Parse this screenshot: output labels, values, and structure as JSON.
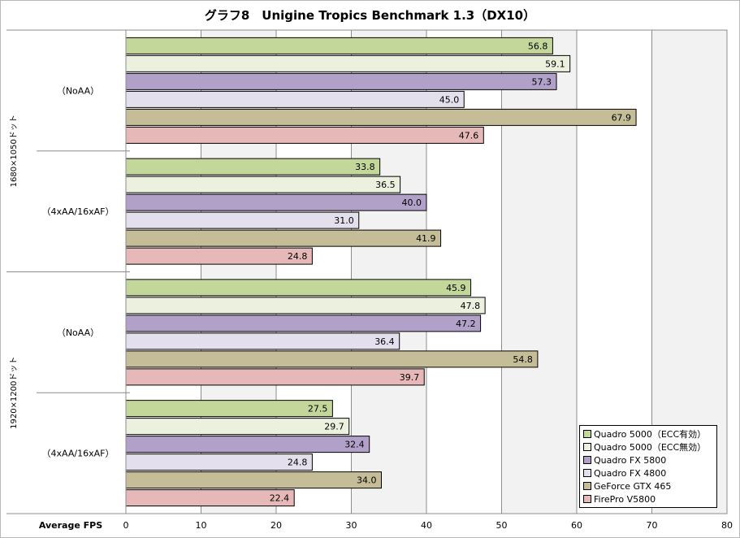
{
  "chart_data": {
    "type": "bar",
    "orientation": "horizontal",
    "title": "グラフ8　Unigine Tropics Benchmark 1.3（DX10）",
    "xlabel": "Average FPS",
    "xlim": [
      0,
      80
    ],
    "xticks": [
      0,
      10,
      20,
      30,
      40,
      50,
      60,
      70,
      80
    ],
    "grid": true,
    "legend_position": "bottom-right",
    "groups": [
      {
        "label": "1680×1050ドット",
        "categories": [
          "（NoAA）",
          "（4xAA/16xAF）"
        ]
      },
      {
        "label": "1920×1200ドット",
        "categories": [
          "（NoAA）",
          "（4xAA/16xAF）"
        ]
      }
    ],
    "series": [
      {
        "name": "Quadro 5000（ECC有効）",
        "color": "#c4d79b",
        "values": [
          56.8,
          33.8,
          45.9,
          27.5
        ]
      },
      {
        "name": "Quadro 5000（ECC無効）",
        "color": "#ebf1de",
        "values": [
          59.1,
          36.5,
          47.8,
          29.7
        ]
      },
      {
        "name": "Quadro FX 5800",
        "color": "#b1a0c7",
        "values": [
          57.3,
          40.0,
          47.2,
          32.4
        ]
      },
      {
        "name": "Quadro FX 4800",
        "color": "#e4dfec",
        "values": [
          45.0,
          31.0,
          36.4,
          24.8
        ]
      },
      {
        "name": "GeForce GTX 465",
        "color": "#c4bd97",
        "values": [
          67.9,
          41.9,
          54.8,
          34.0
        ]
      },
      {
        "name": "FirePro V5800",
        "color": "#e6b9b8",
        "values": [
          47.6,
          24.8,
          39.7,
          22.4
        ]
      }
    ]
  }
}
